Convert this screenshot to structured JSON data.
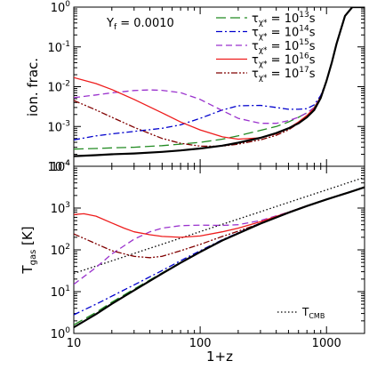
{
  "chart_data": [
    {
      "type": "line",
      "panel": "top",
      "ylabel": "ion. frac.",
      "xlabel": "",
      "xscale": "log",
      "yscale": "log",
      "xlim": [
        10,
        2000
      ],
      "ylim": [
        0.0001,
        1
      ],
      "y_tick_labels": [
        "10",
        "10",
        "10",
        "10",
        "10"
      ],
      "y_tick_exponents": [
        "0",
        "-1",
        "-2",
        "-3",
        "-4"
      ],
      "y_tick_values": [
        1,
        0.1,
        0.01,
        0.001,
        0.0001
      ],
      "annotation": {
        "prefix": "Y",
        "sub": "f",
        "text": " =  0.0010"
      },
      "legend_position": "top-right",
      "series": [
        {
          "name": "τχ* = 10^13 s",
          "label_base": "τ",
          "label_sub": "χ*",
          "label_eq": " = 10",
          "label_exp": "13",
          "label_unit": "s",
          "color": "#228b22",
          "dash": "11,5",
          "x": [
            10,
            15,
            20,
            30,
            50,
            70,
            100,
            150,
            200,
            300,
            400,
            500,
            600,
            700,
            800,
            900,
            1000,
            1100,
            1200,
            1400,
            1600,
            1800,
            2000
          ],
          "y": [
            0.00027,
            0.00028,
            0.00029,
            0.0003,
            0.00033,
            0.00036,
            0.0004,
            0.00048,
            0.00058,
            0.0008,
            0.001,
            0.0013,
            0.0017,
            0.0022,
            0.003,
            0.0055,
            0.014,
            0.04,
            0.12,
            0.6,
            1.0,
            1.0,
            1.0
          ]
        },
        {
          "name": "τχ* = 10^14 s",
          "label_base": "τ",
          "label_sub": "χ*",
          "label_eq": " = 10",
          "label_exp": "14",
          "label_unit": "s",
          "color": "#0000cd",
          "dash": "7,3,2,3",
          "x": [
            10,
            15,
            20,
            30,
            50,
            70,
            100,
            150,
            200,
            300,
            400,
            500,
            600,
            700,
            800,
            900,
            1000,
            1100,
            1200,
            1400,
            1600,
            1800,
            2000
          ],
          "y": [
            0.00046,
            0.00058,
            0.00065,
            0.00075,
            0.0009,
            0.0011,
            0.0016,
            0.0026,
            0.0033,
            0.0034,
            0.003,
            0.0027,
            0.0027,
            0.0028,
            0.0035,
            0.006,
            0.014,
            0.04,
            0.12,
            0.6,
            1.0,
            1.0,
            1.0
          ]
        },
        {
          "name": "τχ* = 10^15 s",
          "label_base": "τ",
          "label_sub": "χ*",
          "label_eq": " = 10",
          "label_exp": "15",
          "label_unit": "s",
          "color": "#9a32cd",
          "dash": "7,4",
          "x": [
            10,
            15,
            20,
            30,
            40,
            50,
            70,
            100,
            150,
            200,
            300,
            400,
            500,
            600,
            700,
            800,
            900,
            1000,
            1100,
            1200,
            1400,
            1600,
            1800,
            2000
          ],
          "y": [
            0.0053,
            0.0062,
            0.007,
            0.008,
            0.0083,
            0.0081,
            0.0071,
            0.0048,
            0.0025,
            0.0016,
            0.0012,
            0.0012,
            0.0014,
            0.0017,
            0.0022,
            0.003,
            0.0055,
            0.014,
            0.04,
            0.12,
            0.6,
            1.0,
            1.0,
            1.0
          ]
        },
        {
          "name": "τχ* = 10^16 s",
          "label_base": "τ",
          "label_sub": "χ*",
          "label_eq": " = 10",
          "label_exp": "16",
          "label_unit": "s",
          "color": "#ee1c1c",
          "dash": "",
          "x": [
            10,
            15,
            20,
            30,
            50,
            70,
            100,
            150,
            200,
            300,
            400,
            500,
            600,
            700,
            800,
            900,
            1000,
            1100,
            1200,
            1400,
            1600,
            1800,
            2000
          ],
          "y": [
            0.017,
            0.012,
            0.0085,
            0.0048,
            0.0022,
            0.0013,
            0.00082,
            0.00055,
            0.00048,
            0.00052,
            0.00065,
            0.0009,
            0.0013,
            0.0019,
            0.0029,
            0.0055,
            0.014,
            0.04,
            0.12,
            0.6,
            1.0,
            1.0,
            1.0
          ]
        },
        {
          "name": "τχ* = 10^17 s",
          "label_base": "τ",
          "label_sub": "χ*",
          "label_eq": " = 10",
          "label_exp": "17",
          "label_unit": "s",
          "color": "#800000",
          "dash": "7,2,2,2,2,2",
          "x": [
            10,
            15,
            20,
            30,
            50,
            70,
            100,
            150,
            200,
            300,
            400,
            500,
            600,
            700,
            800,
            900,
            1000,
            1100,
            1200,
            1400,
            1600,
            1800,
            2000
          ],
          "y": [
            0.0045,
            0.0026,
            0.0017,
            0.00095,
            0.0005,
            0.00038,
            0.00032,
            0.00032,
            0.00036,
            0.00046,
            0.0006,
            0.00082,
            0.0012,
            0.0017,
            0.0027,
            0.0055,
            0.014,
            0.04,
            0.12,
            0.6,
            1.0,
            1.0,
            1.0
          ]
        },
        {
          "name": "",
          "color": "#000000",
          "dash": "",
          "width": 2.2,
          "x": [
            10,
            15,
            20,
            30,
            50,
            70,
            100,
            150,
            200,
            300,
            400,
            500,
            600,
            700,
            800,
            900,
            1000,
            1100,
            1200,
            1400,
            1600,
            1800,
            2000
          ],
          "y": [
            0.00018,
            0.00019,
            0.0002,
            0.00021,
            0.00023,
            0.00025,
            0.00028,
            0.00033,
            0.00039,
            0.00052,
            0.00068,
            0.0009,
            0.0012,
            0.0017,
            0.0026,
            0.0052,
            0.014,
            0.04,
            0.12,
            0.6,
            1.0,
            1.0,
            1.0
          ]
        }
      ]
    },
    {
      "type": "line",
      "panel": "bottom",
      "ylabel_base": "T",
      "ylabel_sub": "gas",
      "ylabel_rest": " [K]",
      "xlabel": "1+z",
      "xscale": "log",
      "yscale": "log",
      "xlim": [
        10,
        2000
      ],
      "ylim": [
        1,
        10000
      ],
      "x_tick_labels": [
        "10",
        "100",
        "1000"
      ],
      "x_tick_values": [
        10,
        100,
        1000
      ],
      "y_tick_labels": [
        "10",
        "10",
        "10",
        "10",
        "10"
      ],
      "y_tick_exponents": [
        "4",
        "3",
        "2",
        "1",
        "0"
      ],
      "y_tick_values": [
        10000,
        1000,
        100,
        10,
        1
      ],
      "legend_position": "bottom-right",
      "legend": {
        "base": "T",
        "sub": "CMB"
      },
      "series": [
        {
          "name": "TCMB",
          "color": "#000000",
          "dash": "1.5,2.5",
          "x": [
            10,
            2000
          ],
          "y": [
            27.3,
            5460
          ]
        },
        {
          "name": "τχ* = 10^13 s",
          "color": "#228b22",
          "dash": "11,5",
          "x": [
            10,
            15,
            20,
            30,
            50,
            70,
            100,
            150,
            200,
            300,
            500,
            700,
            1000,
            1500,
            2000
          ],
          "y": [
            1.6,
            3.2,
            5.6,
            11.5,
            28,
            50,
            90,
            170,
            250,
            430,
            780,
            1130,
            1620,
            2380,
            3150
          ]
        },
        {
          "name": "τχ* = 10^14 s",
          "color": "#0000cd",
          "dash": "7,3,2,3",
          "x": [
            10,
            15,
            20,
            30,
            50,
            70,
            100,
            150,
            200,
            300,
            500,
            700,
            1000,
            1500,
            2000
          ],
          "y": [
            2.8,
            5.0,
            7.8,
            14.5,
            32,
            55,
            95,
            175,
            255,
            440,
            790,
            1130,
            1620,
            2380,
            3150
          ]
        },
        {
          "name": "τχ* = 10^15 s",
          "color": "#9a32cd",
          "dash": "7,4",
          "x": [
            10,
            15,
            20,
            30,
            40,
            50,
            70,
            100,
            150,
            200,
            300,
            500,
            700,
            1000,
            1500,
            2000
          ],
          "y": [
            15,
            38,
            80,
            180,
            270,
            330,
            380,
            390,
            385,
            400,
            500,
            800,
            1130,
            1620,
            2380,
            3150
          ]
        },
        {
          "name": "τχ* = 10^16 s",
          "color": "#ee1c1c",
          "dash": "",
          "x": [
            10,
            12,
            15,
            20,
            25,
            30,
            40,
            50,
            70,
            100,
            150,
            200,
            300,
            500,
            700,
            1000,
            1500,
            2000
          ],
          "y": [
            700,
            730,
            640,
            440,
            330,
            270,
            230,
            210,
            200,
            215,
            270,
            330,
            470,
            790,
            1130,
            1620,
            2380,
            3150
          ]
        },
        {
          "name": "τχ* = 10^17 s",
          "color": "#800000",
          "dash": "7,2,2,2,2,2",
          "x": [
            10,
            15,
            20,
            30,
            40,
            50,
            70,
            100,
            150,
            200,
            300,
            500,
            700,
            1000,
            1500,
            2000
          ],
          "y": [
            240,
            140,
            95,
            70,
            65,
            70,
            95,
            135,
            210,
            280,
            430,
            780,
            1130,
            1620,
            2380,
            3150
          ]
        },
        {
          "name": "",
          "color": "#000000",
          "dash": "",
          "width": 2.2,
          "x": [
            10,
            15,
            20,
            30,
            50,
            70,
            100,
            150,
            200,
            300,
            500,
            700,
            1000,
            1500,
            2000
          ],
          "y": [
            1.4,
            2.9,
            5.1,
            10.7,
            27,
            49,
            89,
            168,
            248,
            425,
            775,
            1120,
            1610,
            2370,
            3140
          ]
        }
      ]
    }
  ]
}
